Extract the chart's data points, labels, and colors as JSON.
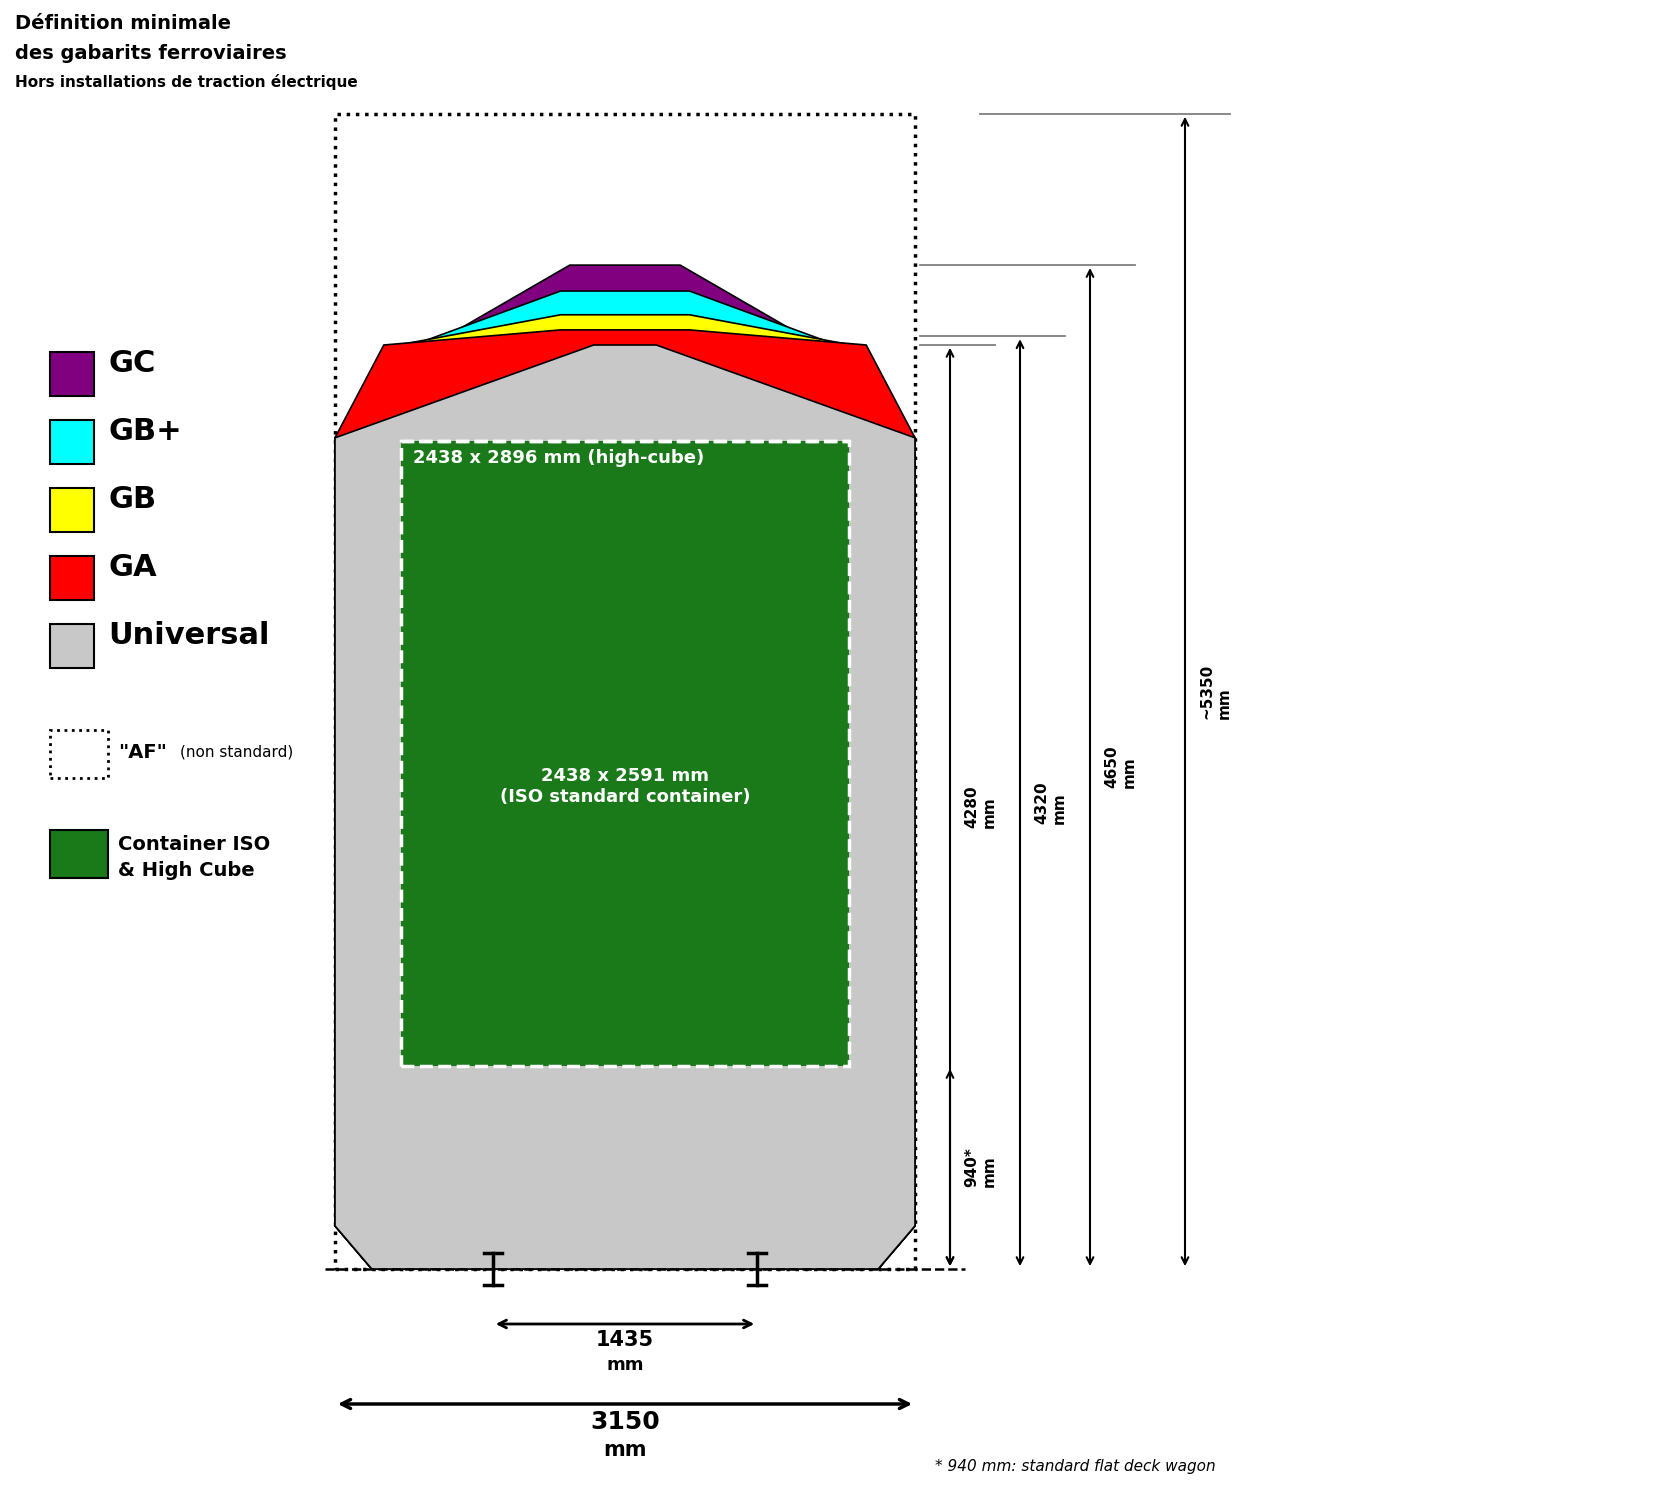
{
  "title_line1": "Définition minimale",
  "title_line2": "des gabarits ferroviaires",
  "title_line3": "Hors installations de traction électrique",
  "bg_color": "#ffffff",
  "gc_color": "#800080",
  "gbplus_color": "#00ffff",
  "gb_color": "#ffff00",
  "ga_color": "#ff0000",
  "universal_color": "#c8c8c8",
  "container_color": "#1a7a1a",
  "legend_items": [
    {
      "color": "#800080",
      "label": "GC"
    },
    {
      "color": "#00ffff",
      "label": "GB+"
    },
    {
      "color": "#ffff00",
      "label": "GB"
    },
    {
      "color": "#ff0000",
      "label": "GA"
    },
    {
      "color": "#c8c8c8",
      "label": "Universal"
    }
  ],
  "container_label_high": "2438 x 2896 mm (high-cube)",
  "container_label_iso": "2438 x 2591 mm\n(ISO standard container)",
  "footnote": "* 940 mm: standard flat deck wagon",
  "dim_940": "940*\nmm",
  "dim_4280": "4280\nmm",
  "dim_4320": "4320\nmm",
  "dim_4650": "4650\nmm",
  "dim_5350": "~5350\nmm",
  "dim_1435": "1435",
  "dim_3150": "3150"
}
